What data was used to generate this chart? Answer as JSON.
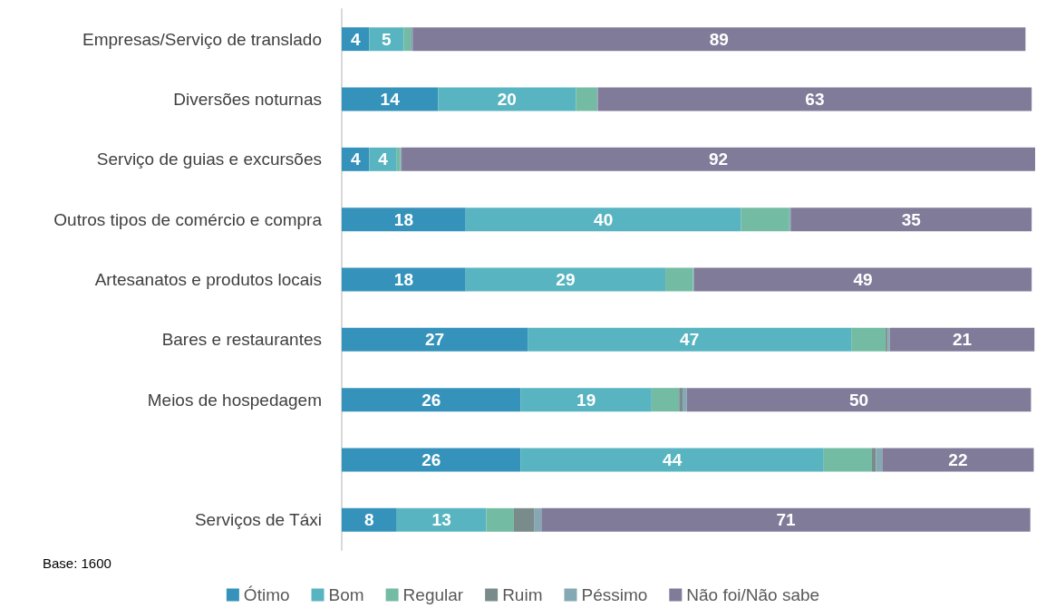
{
  "chart_data": {
    "type": "bar",
    "orientation": "horizontal",
    "stacked": true,
    "categories": [
      "Empresas/Serviço de translado",
      "Diversões noturnas",
      "Serviço de guias e excursões",
      "Outros tipos de comércio e compra",
      "Artesanatos e produtos locais",
      "Bares e restaurantes",
      "Meios de hospedagem",
      null,
      "Serviços de Táxi"
    ],
    "series": [
      {
        "name": "Ótimo",
        "color": "#3592ba",
        "values": [
          4,
          14,
          4,
          18,
          18,
          27,
          26,
          26,
          8
        ],
        "value_labels": [
          "4",
          "14",
          "4",
          "18",
          "18",
          "27",
          "26",
          "26",
          "8"
        ]
      },
      {
        "name": "Bom",
        "color": "#58b4c0",
        "values": [
          5,
          20,
          4,
          40,
          29,
          47,
          19,
          44,
          13
        ],
        "value_labels": [
          "5",
          "20",
          "4",
          "40",
          "29",
          "47",
          "19",
          "44",
          "13"
        ]
      },
      {
        "name": "Regular",
        "color": "#74bba3",
        "values": [
          1,
          3,
          0.5,
          7,
          4,
          5,
          4,
          7,
          4
        ]
      },
      {
        "name": "Ruim",
        "color": "#7a8b8c",
        "values": [
          null,
          null,
          null,
          null,
          null,
          0.3,
          0.5,
          0.6,
          3
        ]
      },
      {
        "name": "Péssimo",
        "color": "#84a9b4",
        "values": [
          0.3,
          0.2,
          0.2,
          0.2,
          0.2,
          0.3,
          0.6,
          0.9,
          1
        ]
      },
      {
        "name": "Não foi/Não sabe",
        "color": "#7f7b99",
        "values": [
          89,
          63,
          92,
          35,
          49,
          21,
          50,
          22,
          71
        ],
        "value_labels": [
          "89",
          "63",
          "92",
          "35",
          "49",
          "21",
          "50",
          "22",
          "71"
        ]
      }
    ],
    "annotations": [
      "Base: 1600"
    ],
    "legend": "bottom",
    "grid": false,
    "tick_labels": "y"
  }
}
